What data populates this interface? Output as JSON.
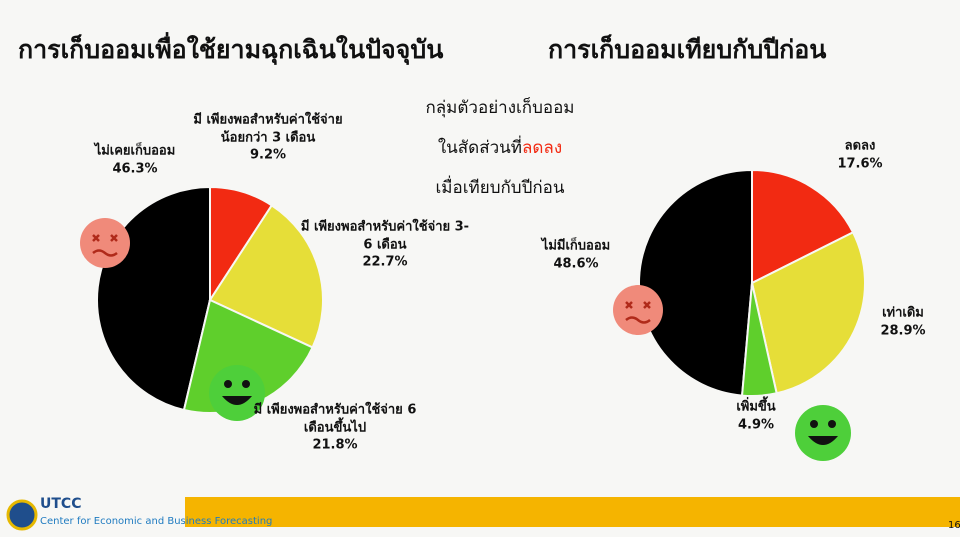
{
  "chart_data": [
    {
      "type": "pie",
      "title": "การเก็บออมเพื่อใช้ยามฉุกเฉินในปัจจุบัน",
      "categories": [
        "ไม่เคยเก็บออม",
        "มี เพียงพอสำหรับค่าใช้จ่ายน้อยกว่า 3 เดือน",
        "มี เพียงพอสำหรับค่าใช้จ่าย 3-6 เดือน",
        "มี เพียงพอสำหรับค่าใช้จ่าย 6 เดือนขึ้นไป"
      ],
      "values": [
        46.3,
        9.2,
        22.7,
        21.8
      ],
      "value_labels": [
        "46.3%",
        "9.2%",
        "22.7%",
        "21.8%"
      ],
      "colors": [
        "#000000",
        "#f22a12",
        "#e6de38",
        "#5fcf2c"
      ]
    },
    {
      "type": "pie",
      "title": "การเก็บออมเทียบกับปีก่อน",
      "categories": [
        "ไม่มีเก็บออม",
        "ลดลง",
        "เท่าเดิม",
        "เพิ่มขึ้น"
      ],
      "values": [
        48.6,
        17.6,
        28.9,
        4.9
      ],
      "value_labels": [
        "48.6%",
        "17.6%",
        "28.9%",
        "4.9%"
      ],
      "colors": [
        "#000000",
        "#f22a12",
        "#e6de38",
        "#5fcf2c"
      ]
    }
  ],
  "annotation": {
    "lines": [
      "กลุ่มตัวอย่างเก็บออม",
      "ในสัดส่วนที่",
      "ลดลง",
      "เมื่อเทียบกับปีก่อน"
    ]
  },
  "footer": {
    "org": "UTCC",
    "name": "Center for Economic and Business Forecasting",
    "page": "16"
  }
}
